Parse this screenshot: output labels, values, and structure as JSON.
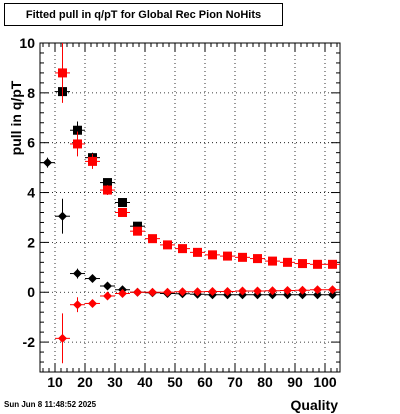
{
  "footer": {
    "timestamp": "Sun Jun  8 11:48:52 2025"
  },
  "chart_data": {
    "type": "scatter",
    "title": "Fitted pull in q/pT for Global Rec Pion NoHits",
    "xlabel": "Quality",
    "ylabel": "pull in q/pT",
    "xlim": [
      5,
      105
    ],
    "ylim": [
      -3.2,
      10
    ],
    "x_ticks": [
      10,
      20,
      30,
      40,
      50,
      60,
      70,
      80,
      90,
      100
    ],
    "y_ticks": [
      -2,
      0,
      2,
      4,
      6,
      8,
      10
    ],
    "grid": true,
    "legend": "none",
    "series": [
      {
        "color": "#000000",
        "marker": "square",
        "x": [
          12.5,
          17.5,
          22.5,
          27.5,
          32.5,
          37.5,
          42.5,
          47.5,
          52.5,
          57.5,
          62.5,
          67.5,
          72.5,
          77.5,
          82.5,
          87.5,
          92.5,
          97.5,
          102.5
        ],
        "y": [
          8.05,
          6.5,
          5.4,
          4.4,
          3.6,
          2.65,
          null,
          null,
          null,
          null,
          null,
          null,
          null,
          null,
          null,
          null,
          null,
          null,
          null
        ],
        "yerr": [
          0.4,
          0.35,
          0.2,
          0.15,
          0.1,
          0.1,
          null,
          null,
          null,
          null,
          null,
          null,
          null,
          null,
          null,
          null,
          null,
          null,
          null
        ]
      },
      {
        "color": "#ff0000",
        "marker": "square",
        "x": [
          12.5,
          17.5,
          22.5,
          27.5,
          32.5,
          37.5,
          42.5,
          47.5,
          52.5,
          57.5,
          62.5,
          67.5,
          72.5,
          77.5,
          82.5,
          87.5,
          92.5,
          97.5,
          102.5
        ],
        "y": [
          8.8,
          5.95,
          5.25,
          4.1,
          3.2,
          2.45,
          2.15,
          1.9,
          1.75,
          1.6,
          1.5,
          1.45,
          1.4,
          1.35,
          1.25,
          1.2,
          1.15,
          1.12,
          1.12
        ],
        "yerr": [
          1.2,
          0.5,
          0.3,
          0.2,
          0.15,
          0.12,
          0.1,
          0.08,
          0.08,
          0.07,
          0.07,
          0.06,
          0.06,
          0.06,
          0.06,
          0.06,
          0.06,
          0.06,
          0.06
        ]
      },
      {
        "color": "#000000",
        "marker": "diamond",
        "x": [
          7.5,
          12.5,
          17.5,
          22.5,
          27.5,
          32.5,
          37.5,
          42.5,
          47.5,
          52.5,
          57.5,
          62.5,
          67.5,
          72.5,
          77.5,
          82.5,
          87.5,
          92.5,
          97.5,
          102.5
        ],
        "y": [
          5.2,
          3.05,
          0.75,
          0.55,
          0.25,
          0.1,
          0.0,
          -0.02,
          -0.05,
          -0.06,
          -0.08,
          -0.1,
          -0.1,
          -0.1,
          -0.1,
          -0.1,
          -0.1,
          -0.1,
          -0.1,
          -0.1
        ],
        "yerr": [
          0.2,
          0.7,
          0.2,
          0.1,
          0.08,
          0.06,
          0.05,
          0.04,
          0.04,
          0.04,
          0.04,
          0.04,
          0.04,
          0.04,
          0.04,
          0.04,
          0.04,
          0.04,
          0.04,
          0.04
        ]
      },
      {
        "color": "#ff0000",
        "marker": "diamond",
        "x": [
          12.5,
          17.5,
          22.5,
          27.5,
          32.5,
          37.5,
          42.5,
          47.5,
          52.5,
          57.5,
          62.5,
          67.5,
          72.5,
          77.5,
          82.5,
          87.5,
          92.5,
          97.5,
          102.5
        ],
        "y": [
          -1.85,
          -0.5,
          -0.45,
          -0.15,
          -0.05,
          0.0,
          0.0,
          0.0,
          0.02,
          0.02,
          0.03,
          0.03,
          0.05,
          0.05,
          0.06,
          0.07,
          0.08,
          0.1,
          0.1
        ],
        "yerr": [
          1.0,
          0.3,
          0.15,
          0.1,
          0.07,
          0.05,
          0.04,
          0.04,
          0.04,
          0.04,
          0.04,
          0.04,
          0.04,
          0.04,
          0.04,
          0.04,
          0.04,
          0.04,
          0.04
        ]
      }
    ]
  }
}
